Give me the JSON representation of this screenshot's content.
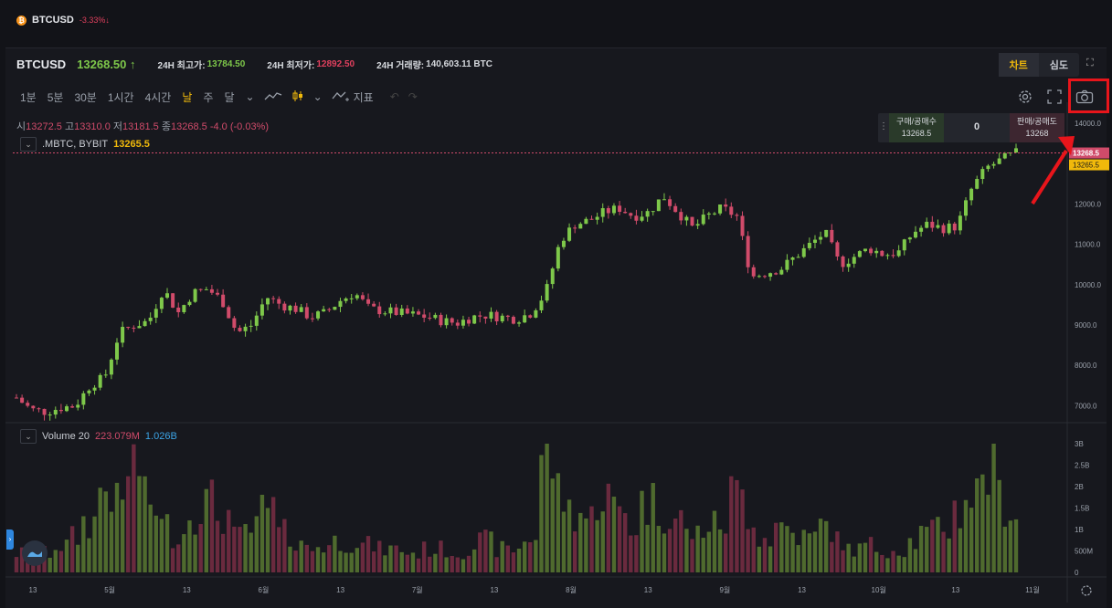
{
  "top": {
    "symbol": "BTCUSD",
    "change": "-3.33%↓"
  },
  "header": {
    "symbol": "BTCUSD",
    "price": "13268.50 ↑",
    "high_label": "24H 최고가:",
    "high_value": "13784.50",
    "low_label": "24H 최저가:",
    "low_value": "12892.50",
    "volume_label": "24H 거래량:",
    "volume_value": "140,603.11 BTC",
    "tabs": [
      "차트",
      "심도"
    ]
  },
  "toolbar": {
    "intervals": [
      "1분",
      "5분",
      "30분",
      "1시간",
      "4시간",
      "날",
      "주",
      "달"
    ],
    "active_interval": "날",
    "indicators_label": "지표"
  },
  "ohlc": {
    "open_k": "시",
    "open": "13272.5",
    "high_k": "고",
    "high": "13310.0",
    "low_k": "저",
    "low": "13181.5",
    "close_k": "종",
    "close": "13268.5",
    "change": "-4.0 (-0.03%)"
  },
  "series_label": {
    "name": ".MBTC, BYBIT",
    "value": "13265.5"
  },
  "orderbook": {
    "buy_label": "구매/공매수",
    "buy_price": "13268.5",
    "mid": "0",
    "sell_label": "판매/공매도",
    "sell_price": "13268"
  },
  "price_tags": {
    "last": "13268.5",
    "mark": "13265.5"
  },
  "volume": {
    "label": "Volume 20",
    "v1": "223.079M",
    "v2": "1.026B"
  },
  "colors": {
    "up": "#7ec84a",
    "down": "#d04b6a",
    "accent": "#f0b90b",
    "highlight": "#e8151b"
  },
  "chart_data": {
    "type": "candlestick",
    "price_axis": [
      "14000.0",
      "13000.0",
      "12000.0",
      "11000.0",
      "10000.0",
      "9000.0",
      "8000.0",
      "7000.0"
    ],
    "volume_axis": [
      "3B",
      "2.5B",
      "2B",
      "1.5B",
      "1B",
      "500M",
      "0"
    ],
    "x_ticks": [
      "13",
      "5월",
      "13",
      "6월",
      "13",
      "7월",
      "13",
      "8월",
      "13",
      "9월",
      "13",
      "10월",
      "13",
      "11월"
    ],
    "ylim": [
      6500,
      14000
    ],
    "volume_ylim": [
      0,
      3000000000
    ],
    "close_series": [
      7200,
      6900,
      6850,
      6950,
      7000,
      7500,
      7700,
      8800,
      9000,
      9100,
      9900,
      9300,
      9800,
      9900,
      9600,
      8800,
      9000,
      9700,
      9500,
      9400,
      9200,
      9300,
      9600,
      9800,
      9400,
      9350,
      9300,
      9250,
      9200,
      9100,
      9050,
      9200,
      9250,
      9200,
      9150,
      9300,
      9800,
      11100,
      11500,
      11600,
      11800,
      11900,
      11700,
      11800,
      12200,
      11800,
      11400,
      11700,
      11900,
      11700,
      10200,
      10300,
      10400,
      10700,
      11000,
      11300,
      10500,
      10700,
      10900,
      10750,
      10800,
      11300,
      11500,
      11400,
      11450,
      12400,
      12900,
      13100,
      13268
    ],
    "volume_series": [
      0.5,
      0.6,
      0.5,
      0.7,
      0.9,
      1.3,
      2.2,
      1.7,
      2.8,
      1.8,
      1.2,
      1.0,
      1.6,
      1.8,
      1.5,
      0.9,
      1.1,
      1.6,
      1.0,
      0.9,
      0.6,
      0.7,
      0.8,
      0.8,
      0.7,
      0.6,
      0.6,
      0.5,
      0.6,
      0.6,
      0.5,
      0.7,
      0.8,
      0.6,
      0.6,
      0.9,
      3.0,
      2.0,
      1.6,
      1.4,
      2.0,
      1.6,
      1.2,
      1.8,
      1.6,
      1.4,
      1.0,
      1.2,
      1.3,
      2.0,
      1.6,
      0.9,
      1.2,
      1.0,
      0.9,
      1.2,
      0.8,
      0.6,
      0.7,
      0.6,
      0.6,
      0.8,
      1.0,
      1.2,
      1.6,
      2.0,
      2.7,
      1.9,
      1.6
    ]
  }
}
